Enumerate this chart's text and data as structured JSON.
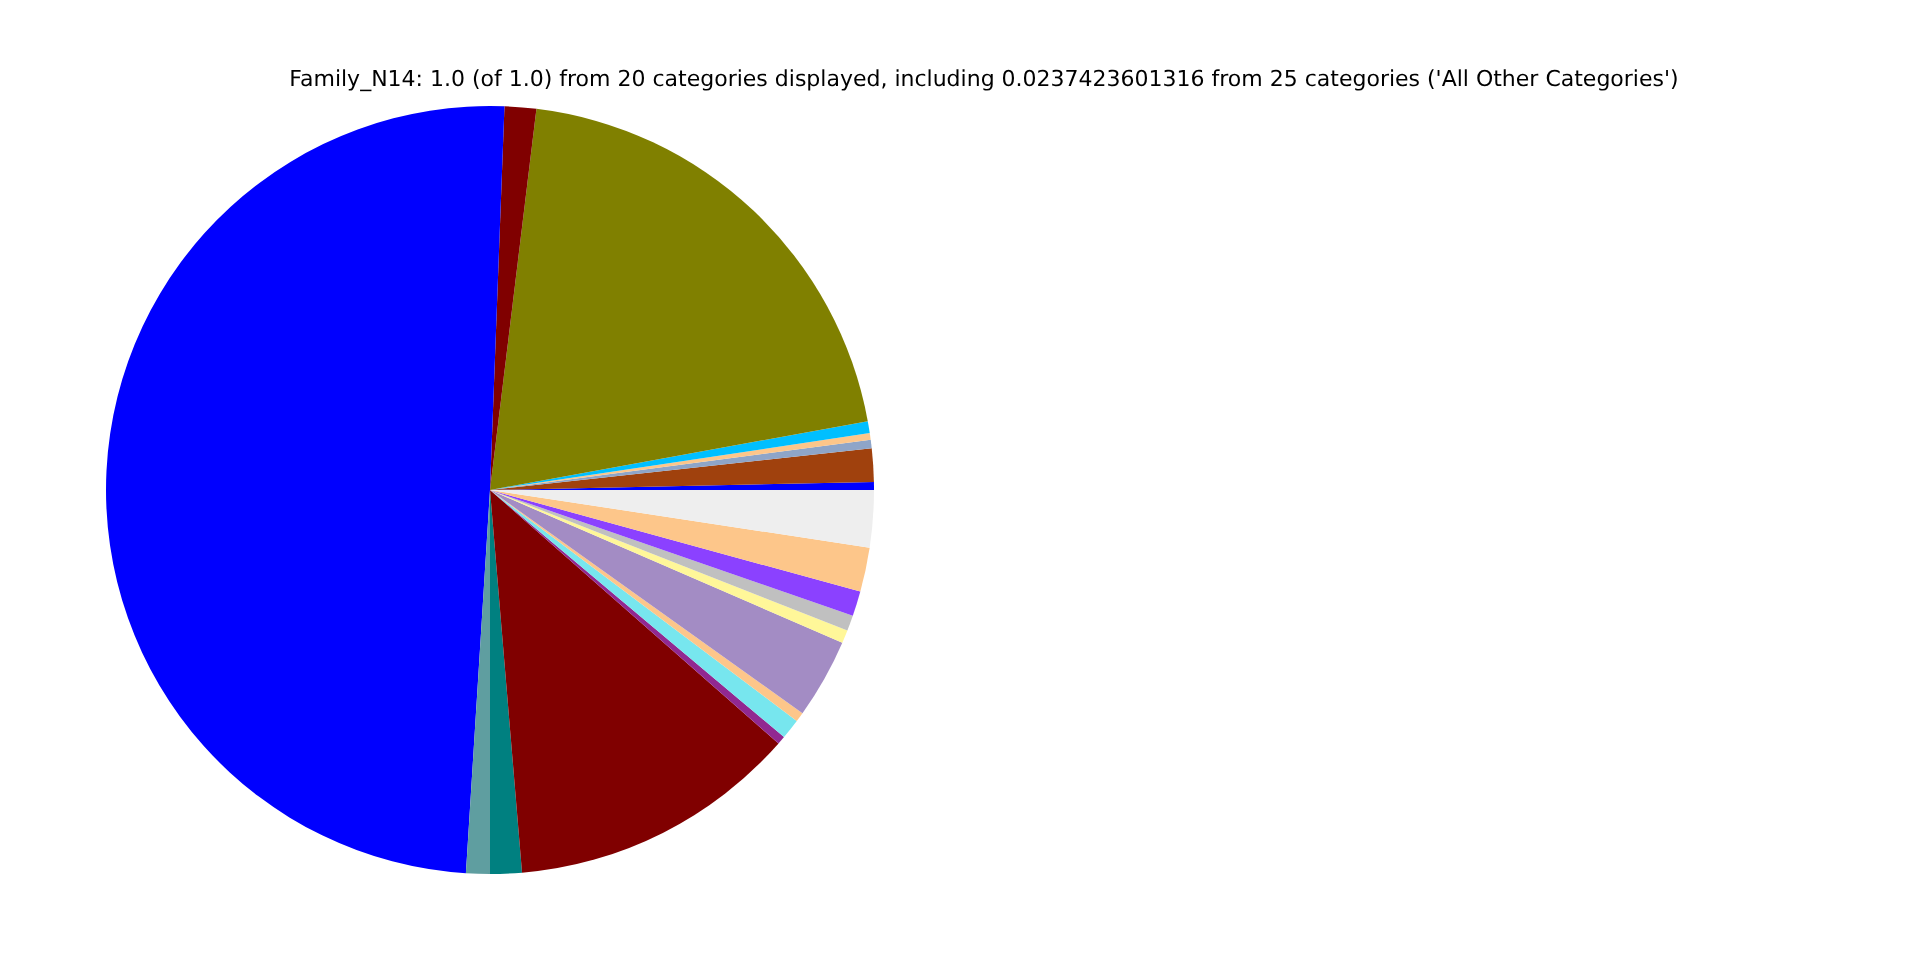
{
  "chart_data": {
    "type": "pie",
    "title": "Family_N14: 1.0 (of 1.0) from 20 categories displayed, including 0.0237423601316 from 25 categories ('All Other Categories')",
    "categories": [
      null,
      null,
      null,
      null,
      null,
      null,
      null,
      null,
      null,
      null,
      null,
      null,
      null,
      null,
      null,
      null,
      null,
      null,
      null,
      null
    ],
    "values": [
      0.33,
      1.4,
      0.36,
      0.28,
      0.5,
      20.2,
      1.33,
      49.6,
      1,
      1.33,
      12.2,
      0.35,
      0.85,
      0.4,
      3.36,
      0.55,
      0.65,
      1.05,
      1.86,
      2.4
    ],
    "colors": [
      "#0000ff",
      "#a0410d",
      "#8ea5c8",
      "#fdc68a",
      "#00bfff",
      "#808000",
      "#800000",
      "#0000ff",
      "#5f9ea0",
      "#008080",
      "#800000",
      "#912891",
      "#77e6ee",
      "#fdc68a",
      "#a38cc4",
      "#fff799",
      "#c0c0c0",
      "#8b41ff",
      "#fdc68a",
      "#eeeeee"
    ]
  }
}
